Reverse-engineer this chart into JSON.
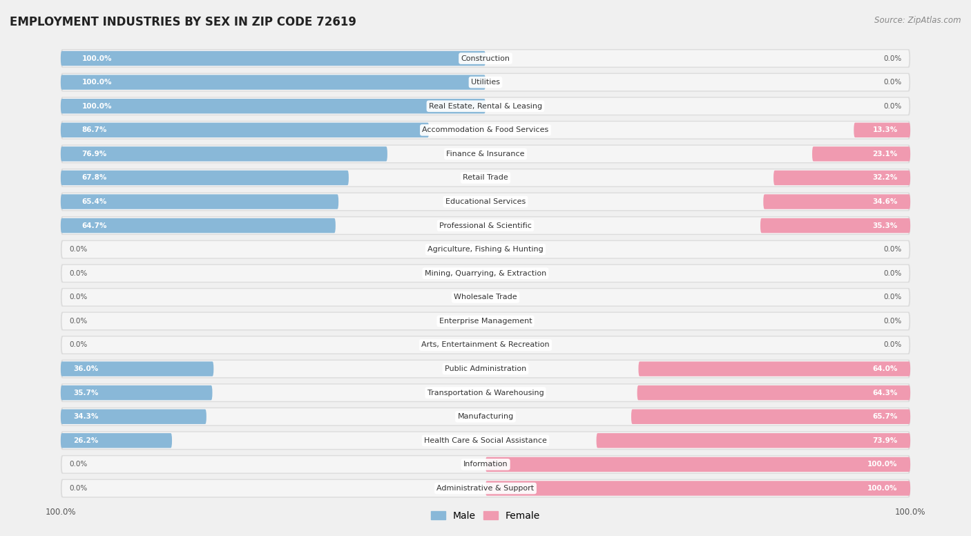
{
  "title": "EMPLOYMENT INDUSTRIES BY SEX IN ZIP CODE 72619",
  "source": "Source: ZipAtlas.com",
  "male_color": "#89b8d8",
  "female_color": "#f09ab0",
  "bg_color": "#f0f0f0",
  "row_color_light": "#e8e8e8",
  "row_color_dark": "#d8d8d8",
  "industries": [
    "Construction",
    "Utilities",
    "Real Estate, Rental & Leasing",
    "Accommodation & Food Services",
    "Finance & Insurance",
    "Retail Trade",
    "Educational Services",
    "Professional & Scientific",
    "Agriculture, Fishing & Hunting",
    "Mining, Quarrying, & Extraction",
    "Wholesale Trade",
    "Enterprise Management",
    "Arts, Entertainment & Recreation",
    "Public Administration",
    "Transportation & Warehousing",
    "Manufacturing",
    "Health Care & Social Assistance",
    "Information",
    "Administrative & Support"
  ],
  "male_pct": [
    100.0,
    100.0,
    100.0,
    86.7,
    76.9,
    67.8,
    65.4,
    64.7,
    0.0,
    0.0,
    0.0,
    0.0,
    0.0,
    36.0,
    35.7,
    34.3,
    26.2,
    0.0,
    0.0
  ],
  "female_pct": [
    0.0,
    0.0,
    0.0,
    13.3,
    23.1,
    32.2,
    34.6,
    35.3,
    0.0,
    0.0,
    0.0,
    0.0,
    0.0,
    64.0,
    64.3,
    65.7,
    73.9,
    100.0,
    100.0
  ],
  "label_fontsize": 8.0,
  "pct_fontsize": 7.5,
  "title_fontsize": 12,
  "source_fontsize": 8.5
}
